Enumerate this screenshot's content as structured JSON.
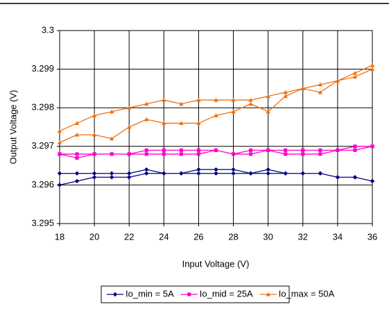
{
  "chart_data": {
    "type": "line",
    "xlabel": "Input Voltage (V)",
    "ylabel": "Output Voltage (V)",
    "x": [
      18,
      19,
      20,
      21,
      22,
      23,
      24,
      25,
      26,
      27,
      28,
      29,
      30,
      31,
      32,
      33,
      34,
      35,
      36,
      36,
      35,
      34,
      33,
      32,
      31,
      30,
      29,
      28,
      27,
      26,
      25,
      24,
      23,
      22,
      21,
      20,
      19,
      18
    ],
    "series": [
      {
        "name": "Io_min = 5A",
        "color": "#000080",
        "marker": "diamond",
        "values": [
          3.296,
          3.2961,
          3.2962,
          3.2962,
          3.2962,
          3.2963,
          3.2963,
          3.2963,
          3.2963,
          3.2963,
          3.2963,
          3.2963,
          3.2963,
          3.2963,
          3.2963,
          3.2963,
          3.2962,
          3.2962,
          3.2961,
          3.2961,
          3.2962,
          3.2962,
          3.2963,
          3.2963,
          3.2963,
          3.2964,
          3.2963,
          3.2964,
          3.2964,
          3.2964,
          3.2963,
          3.2963,
          3.2964,
          3.2963,
          3.2963,
          3.2963,
          3.2963,
          3.2963
        ]
      },
      {
        "name": "Io_mid = 25A",
        "color": "#ff00cc",
        "marker": "square",
        "values": [
          3.2968,
          3.2967,
          3.2968,
          3.2968,
          3.2968,
          3.2968,
          3.2968,
          3.2968,
          3.2968,
          3.2969,
          3.2968,
          3.2968,
          3.2969,
          3.2968,
          3.2968,
          3.2968,
          3.2969,
          3.2969,
          3.297,
          3.297,
          3.297,
          3.2969,
          3.2969,
          3.2969,
          3.2969,
          3.2969,
          3.2969,
          3.2968,
          3.2969,
          3.2969,
          3.2969,
          3.2969,
          3.2969,
          3.2968,
          3.2968,
          3.2968,
          3.2968,
          3.2968
        ]
      },
      {
        "name": "Io_max = 50A",
        "color": "#f07010",
        "marker": "triangle",
        "values": [
          3.2971,
          3.2973,
          3.2973,
          3.2972,
          3.2975,
          3.2977,
          3.2976,
          3.2976,
          3.2976,
          3.2978,
          3.2979,
          3.2981,
          3.2979,
          3.2983,
          3.2985,
          3.2984,
          3.2987,
          3.2989,
          3.2991,
          3.299,
          3.2988,
          3.2987,
          3.2986,
          3.2985,
          3.2984,
          3.2983,
          3.2982,
          3.2982,
          3.2982,
          3.2982,
          3.2981,
          3.2982,
          3.2981,
          3.298,
          3.2979,
          3.2978,
          3.2976,
          3.2974
        ]
      }
    ],
    "xlim": [
      18,
      36
    ],
    "xticks": [
      18,
      20,
      22,
      24,
      26,
      28,
      30,
      32,
      34,
      36
    ],
    "ylim": [
      3.295,
      3.3
    ],
    "yticks": [
      3.295,
      3.296,
      3.297,
      3.298,
      3.299,
      3.3
    ],
    "grid": true,
    "legend": "bottom"
  }
}
